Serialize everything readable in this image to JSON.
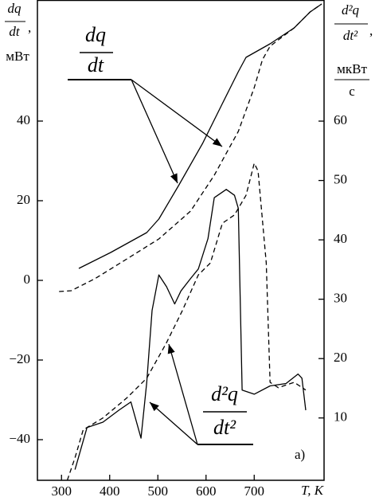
{
  "chart_data": {
    "type": "line",
    "xlabel": "T, K",
    "ylabel": {
      "num": "dq",
      "den": "dt",
      "sep": ",",
      "unit": "мВт"
    },
    "y2label": {
      "num": "d²q",
      "den": "dt²",
      "sep": ",",
      "unit_num": "мкВт",
      "unit_den": "с"
    },
    "annotations": [
      {
        "num": "dq",
        "den": "dt"
      },
      {
        "num": "d²q",
        "den": "dt²"
      },
      {
        "text": "а)"
      }
    ],
    "xlim": [
      250,
      845
    ],
    "xticks": [
      300,
      400,
      500,
      600,
      700
    ],
    "ylim": [
      -50.2,
      70.4
    ],
    "yticks": [
      {
        "value": -40,
        "label": "−40"
      },
      {
        "value": -20,
        "label": "−20"
      },
      0,
      20,
      40
    ],
    "y2lim": [
      -0.5,
      80.4
    ],
    "y2ticks": [
      10,
      20,
      30,
      40,
      50,
      60
    ],
    "series": [
      {
        "color": "#000000",
        "dash": false,
        "x": [
          336,
          402,
          477,
          502,
          543,
          593,
          634,
          667,
          683,
          733,
          783,
          816,
          840
        ],
        "values": [
          3,
          7,
          12,
          15.4,
          23.8,
          34.4,
          44.4,
          52.4,
          56,
          59.4,
          63.4,
          67.4,
          69.4
        ]
      },
      {
        "color": "#000000",
        "dash": true,
        "x": [
          295,
          320,
          369,
          436,
          502,
          568,
          617,
          667,
          700,
          717,
          733,
          783,
          816,
          840
        ],
        "values": [
          -2.8,
          -2.6,
          0.4,
          5.4,
          10.4,
          17.4,
          26.4,
          37.4,
          48.4,
          55.4,
          58.8,
          63.4,
          67.4,
          69.4
        ]
      },
      {
        "color": "#000000",
        "dash": false,
        "axis": "y2",
        "x": [
          328,
          353,
          386,
          419,
          444,
          465,
          477,
          488,
          502,
          518,
          535,
          548,
          568,
          584,
          604,
          617,
          642,
          659,
          667,
          675,
          700,
          733,
          766,
          791,
          799,
          807
        ],
        "values": [
          1.3,
          8.4,
          9.3,
          11.3,
          12.7,
          6.6,
          16.0,
          28.1,
          34.1,
          32.1,
          29.2,
          31.4,
          33.5,
          35.1,
          40.2,
          47.1,
          48.5,
          47.5,
          45.3,
          14.7,
          14.0,
          15.4,
          15.8,
          17.4,
          16.7,
          11.3
        ]
      },
      {
        "color": "#000000",
        "dash": true,
        "axis": "y2",
        "x": [
          312,
          328,
          345,
          386,
          436,
          477,
          518,
          551,
          584,
          609,
          634,
          659,
          683,
          700,
          708,
          725,
          733,
          750,
          783,
          807
        ],
        "values": [
          -0.5,
          3.3,
          8.0,
          10,
          13.4,
          16.7,
          22.7,
          28.1,
          34.1,
          36.1,
          42.8,
          44.2,
          47.5,
          52.9,
          51.6,
          36.1,
          16.0,
          15.1,
          16.0,
          14.7
        ]
      }
    ]
  }
}
